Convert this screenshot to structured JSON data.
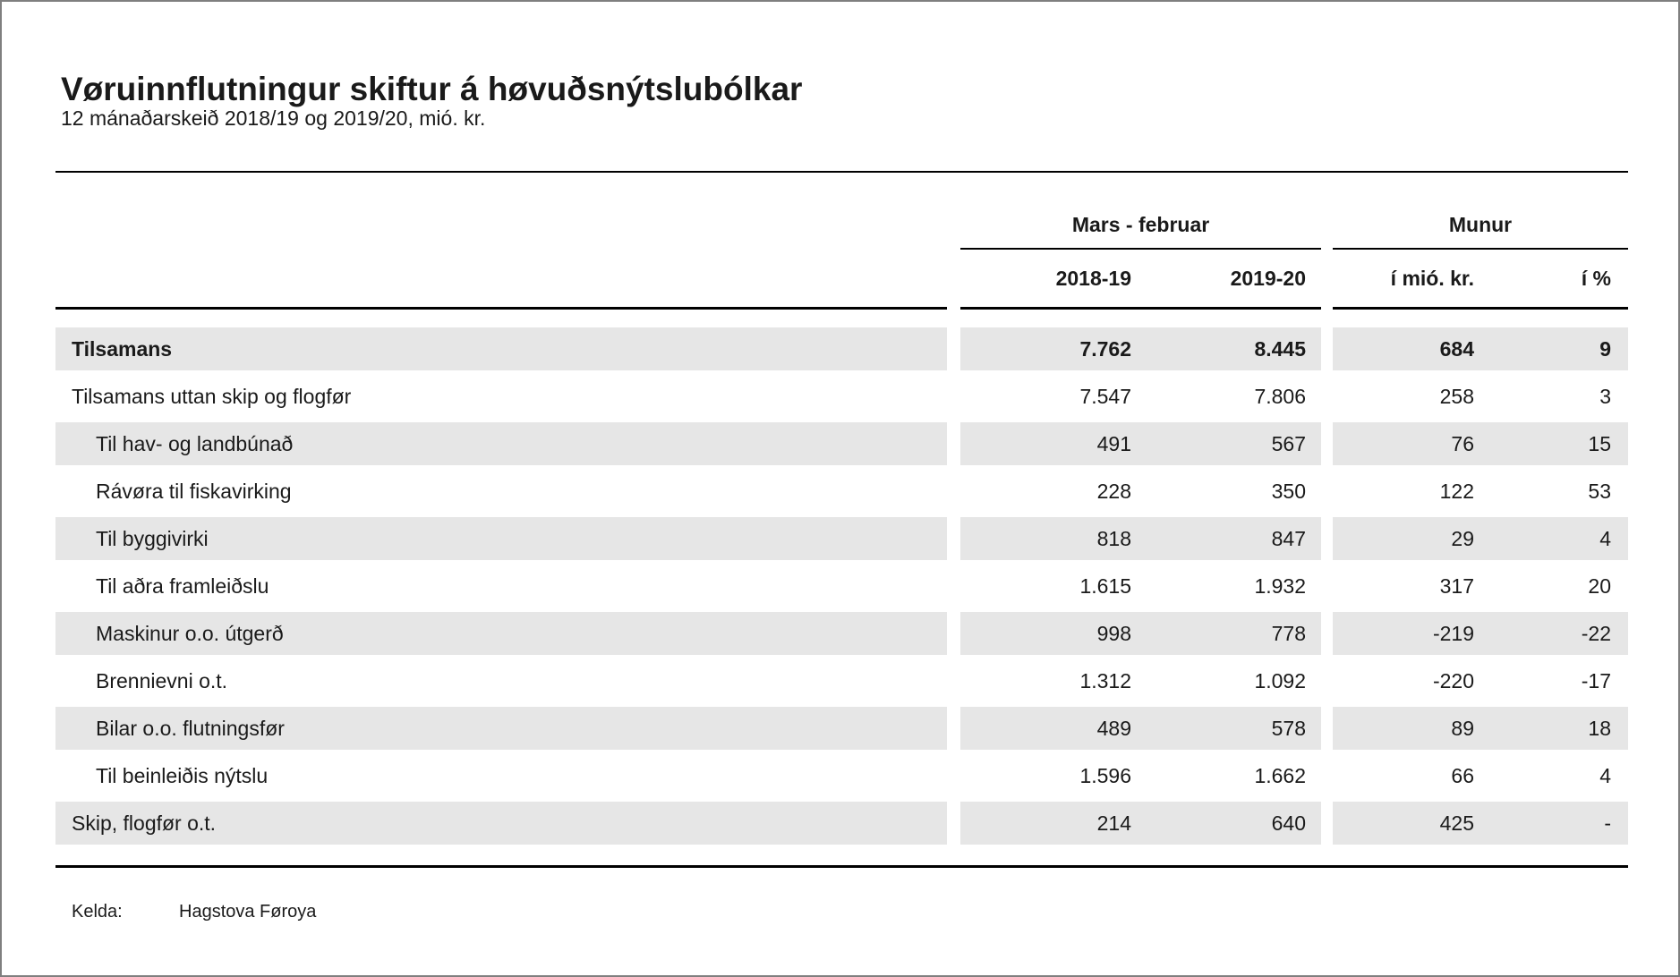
{
  "chart_data": {
    "type": "table",
    "title": "Vøruinnflutningur skiftur á høvuðsnýtslubólkar",
    "subtitle": "12 mánaðarskeið 2018/19 og 2019/20, mió. kr.",
    "column_groups": [
      {
        "label": "Mars - februar",
        "span": 2
      },
      {
        "label": "Munur",
        "span": 2
      }
    ],
    "columns": [
      "2018-19",
      "2019-20",
      "í mió. kr.",
      "í %"
    ],
    "rows": [
      {
        "label": "Tilsamans",
        "values": [
          "7.762",
          "8.445",
          "684",
          "9"
        ],
        "bold": true,
        "shaded": true,
        "indent": false
      },
      {
        "label": "Tilsamans uttan skip og flogfør",
        "values": [
          "7.547",
          "7.806",
          "258",
          "3"
        ],
        "bold": false,
        "shaded": false,
        "indent": false
      },
      {
        "label": "Til hav- og landbúnað",
        "values": [
          "491",
          "567",
          "76",
          "15"
        ],
        "bold": false,
        "shaded": true,
        "indent": true
      },
      {
        "label": "Rávøra til fiskavirking",
        "values": [
          "228",
          "350",
          "122",
          "53"
        ],
        "bold": false,
        "shaded": false,
        "indent": true
      },
      {
        "label": "Til byggivirki",
        "values": [
          "818",
          "847",
          "29",
          "4"
        ],
        "bold": false,
        "shaded": true,
        "indent": true
      },
      {
        "label": "Til aðra framleiðslu",
        "values": [
          "1.615",
          "1.932",
          "317",
          "20"
        ],
        "bold": false,
        "shaded": false,
        "indent": true
      },
      {
        "label": "Maskinur o.o. útgerð",
        "values": [
          "998",
          "778",
          "-219",
          "-22"
        ],
        "bold": false,
        "shaded": true,
        "indent": true
      },
      {
        "label": "Brennievni o.t.",
        "values": [
          "1.312",
          "1.092",
          "-220",
          "-17"
        ],
        "bold": false,
        "shaded": false,
        "indent": true
      },
      {
        "label": "Bilar o.o. flutningsfør",
        "values": [
          "489",
          "578",
          "89",
          "18"
        ],
        "bold": false,
        "shaded": true,
        "indent": true
      },
      {
        "label": "Til beinleiðis nýtslu",
        "values": [
          "1.596",
          "1.662",
          "66",
          "4"
        ],
        "bold": false,
        "shaded": false,
        "indent": true
      },
      {
        "label": "Skip, flogfør o.t.",
        "values": [
          "214",
          "640",
          "425",
          "-"
        ],
        "bold": false,
        "shaded": true,
        "indent": false
      }
    ],
    "source_label": "Kelda:",
    "source": "Hagstova Føroya"
  },
  "colors": {
    "stripe": "#e6e6e6",
    "text": "#1a1a1a",
    "line": "#000000",
    "page_border": "#7f7f7f",
    "background": "#ffffff"
  }
}
